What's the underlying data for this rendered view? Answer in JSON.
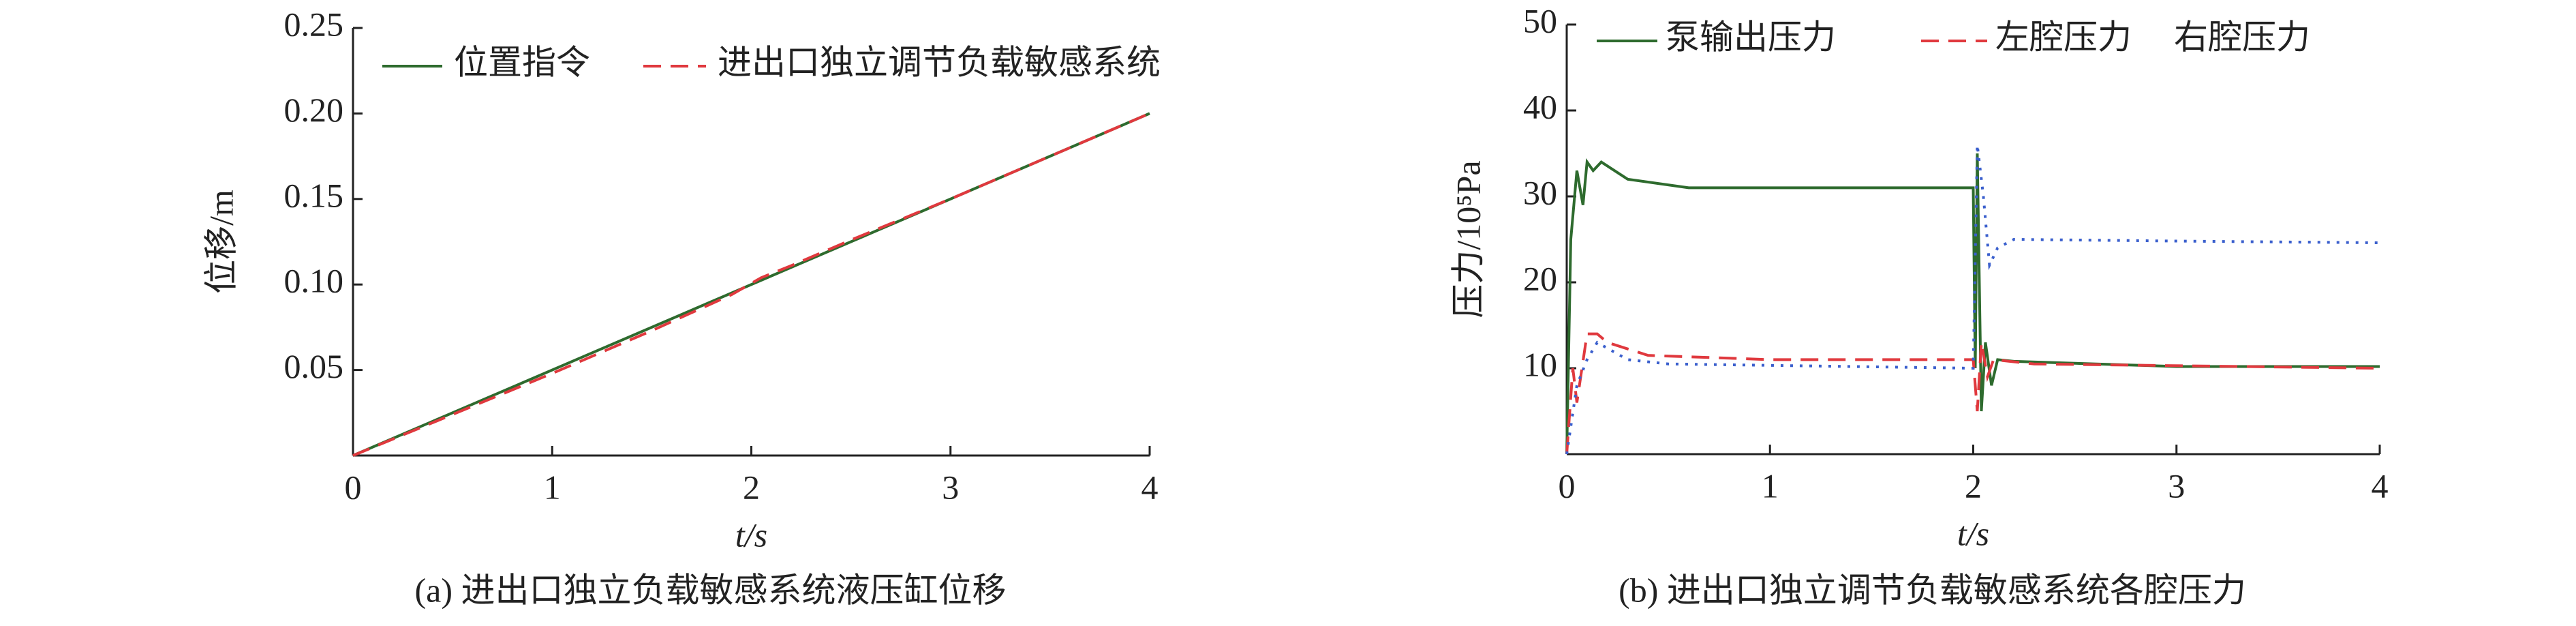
{
  "chart_data": [
    {
      "type": "line",
      "y_label": "位移/m",
      "x_label": "t/s",
      "caption": "(a) 进出口独立负载敏感系统液压缸位移",
      "xlim": [
        0,
        4
      ],
      "xticks": [
        0,
        1,
        2,
        3,
        4
      ],
      "ylim": [
        0,
        0.25
      ],
      "yticks": [
        0.05,
        {
          "value": 0.1,
          "label": "0.10"
        },
        0.15,
        {
          "value": 0.2,
          "label": "0.20"
        },
        0.25
      ],
      "series": [
        {
          "name": "位置指令",
          "color": "#2e6b2e",
          "dash": "solid",
          "x": [
            0,
            4
          ],
          "values": [
            0,
            0.2
          ]
        },
        {
          "name": "进出口独立调节负载敏感系统",
          "color": "#e0393e",
          "dash": "dashed",
          "x": [
            0,
            0.5,
            1,
            1.5,
            1.9,
            2.05,
            2.2,
            2.5,
            3,
            3.5,
            4
          ],
          "values": [
            0,
            0.024,
            0.048,
            0.073,
            0.094,
            0.104,
            0.111,
            0.126,
            0.15,
            0.175,
            0.2
          ]
        }
      ]
    },
    {
      "type": "line",
      "y_label": "压力/10⁵Pa",
      "x_label": "t/s",
      "caption": "(b) 进出口独立调节负载敏感系统各腔压力",
      "xlim": [
        0,
        4
      ],
      "xticks": [
        0,
        1,
        2,
        3,
        4
      ],
      "ylim": [
        0,
        50
      ],
      "yticks": [
        10,
        20,
        30,
        40,
        50
      ],
      "series": [
        {
          "name": "泵输出压力",
          "color": "#2e6b2e",
          "dash": "solid",
          "x": [
            0,
            0.02,
            0.05,
            0.08,
            0.1,
            0.13,
            0.17,
            0.3,
            0.6,
            2.0,
            2.01,
            2.02,
            2.04,
            2.06,
            2.09,
            2.12,
            2.2,
            3,
            4
          ],
          "values": [
            0,
            25,
            33,
            29,
            34,
            33,
            34,
            32,
            31,
            31,
            10,
            35,
            5,
            13,
            8,
            11,
            10.8,
            10.2,
            10.2
          ]
        },
        {
          "name": "左腔压力",
          "color": "#e0393e",
          "dash": "dashed",
          "x": [
            0,
            0.03,
            0.05,
            0.1,
            0.15,
            0.2,
            0.4,
            1,
            2.0,
            2.02,
            2.04,
            2.07,
            2.1,
            2.3,
            4
          ],
          "values": [
            0,
            10,
            6,
            14,
            14,
            13,
            11.5,
            11,
            11,
            5,
            13,
            9,
            11,
            10.5,
            10
          ]
        },
        {
          "name": "右腔压力",
          "color": "#3a5fcd",
          "dash": "dotted",
          "x": [
            0,
            0.05,
            0.1,
            0.15,
            0.3,
            0.5,
            2.0,
            2.02,
            2.05,
            2.08,
            2.12,
            2.2,
            3,
            4
          ],
          "values": [
            0,
            8,
            11,
            13,
            11,
            10.5,
            10,
            36,
            30,
            22,
            24,
            25,
            24.8,
            24.6
          ]
        }
      ]
    }
  ]
}
